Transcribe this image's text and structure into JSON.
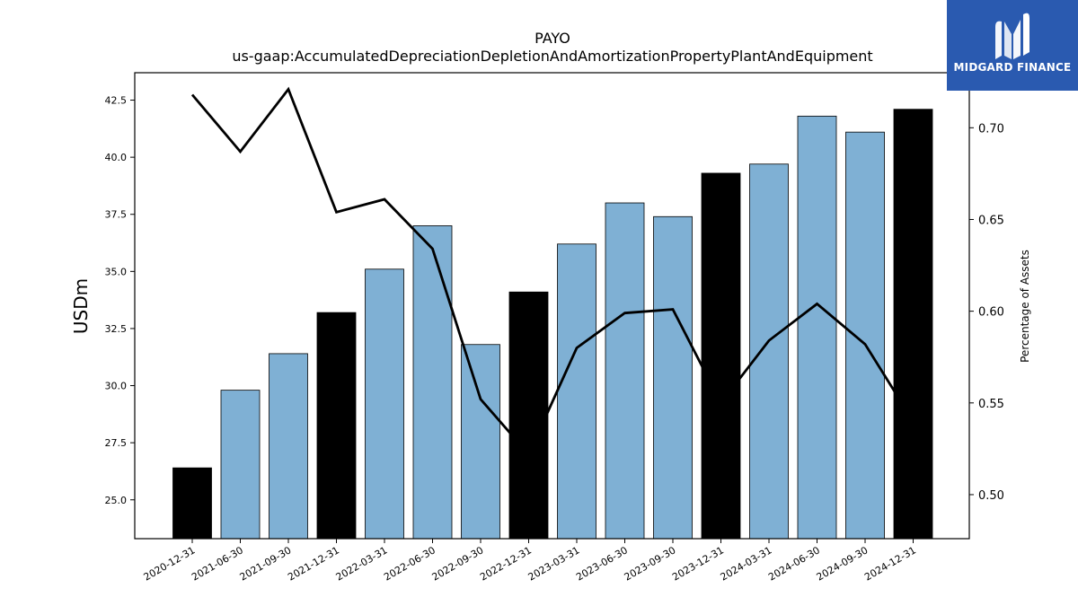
{
  "chart_data": {
    "type": "bar",
    "title": "PAYO",
    "subtitle": "us-gaap:AccumulatedDepreciationDepletionAndAmortizationPropertyPlantAndEquipment",
    "ylabel": "USDm",
    "y2label": "Percentage of Assets",
    "ylim": [
      23.3,
      43.7
    ],
    "y2lim": [
      0.476,
      0.73
    ],
    "yticks": [
      "25.0",
      "27.5",
      "30.0",
      "32.5",
      "35.0",
      "37.5",
      "40.0",
      "42.5"
    ],
    "y2ticks": [
      "0.50",
      "0.55",
      "0.60",
      "0.65",
      "0.70"
    ],
    "categories": [
      "2020-12-31",
      "2021-06-30",
      "2021-09-30",
      "2021-12-31",
      "2022-03-31",
      "2022-06-30",
      "2022-09-30",
      "2022-12-31",
      "2023-03-31",
      "2023-06-30",
      "2023-09-30",
      "2023-12-31",
      "2024-03-31",
      "2024-06-30",
      "2024-09-30",
      "2024-12-31"
    ],
    "series": [
      {
        "type": "bar",
        "values": [
          26.4,
          29.8,
          31.4,
          33.2,
          35.1,
          37.0,
          31.8,
          34.1,
          36.2,
          38.0,
          37.4,
          39.3,
          39.7,
          41.8,
          41.1,
          42.1
        ],
        "colors": [
          "#000000",
          "#7fb0d4",
          "#7fb0d4",
          "#000000",
          "#7fb0d4",
          "#7fb0d4",
          "#7fb0d4",
          "#000000",
          "#7fb0d4",
          "#7fb0d4",
          "#7fb0d4",
          "#000000",
          "#7fb0d4",
          "#7fb0d4",
          "#7fb0d4",
          "#000000"
        ]
      },
      {
        "type": "line",
        "axis": "right",
        "color": "#000000",
        "values": [
          0.718,
          0.687,
          0.721,
          0.654,
          0.661,
          0.634,
          0.552,
          0.522,
          0.58,
          0.599,
          0.601,
          0.55,
          0.584,
          0.604,
          0.582,
          0.54
        ]
      }
    ],
    "grid": false
  },
  "logo": {
    "text": "MIDGARD FINANCE",
    "color": "#2a5ab0"
  }
}
